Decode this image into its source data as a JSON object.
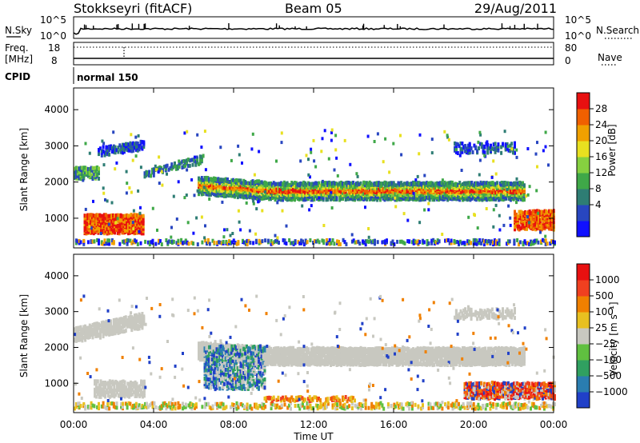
{
  "header": {
    "station": "Stokkseyri (fitACF)",
    "beam": "Beam 05",
    "date": "29/Aug/2011"
  },
  "chart_data": [
    {
      "type": "line",
      "name": "noise-panel",
      "left_label": "N.Sky",
      "right_label": "N.Search",
      "left_ticks": [
        "10^5",
        "10^0"
      ],
      "right_ticks": [
        "10^5",
        "10^0"
      ]
    },
    {
      "type": "line",
      "name": "freq-panel",
      "left_label_top": "Freq.",
      "left_label_bottom": "[MHz]",
      "right_label": "Nave",
      "left_ticks": [
        "18",
        "8"
      ],
      "right_ticks": [
        "80",
        "0"
      ]
    },
    {
      "type": "table",
      "name": "cpid-panel",
      "label": "CPID",
      "segments": [
        {
          "start_hour": 0,
          "text": "normal 150"
        }
      ]
    },
    {
      "type": "heatmap",
      "name": "power",
      "ylabel": "Slant Range [km]",
      "ylim": [
        180,
        4600
      ],
      "yticks": [
        "1000",
        "2000",
        "3000",
        "4000"
      ],
      "xlim_hours": [
        0,
        24
      ],
      "colorbar": {
        "label": "Power [dB]",
        "ticks": [
          "4",
          "8",
          "12",
          "16",
          "20",
          "24",
          "28"
        ],
        "colors": [
          "#1010ff",
          "#2846c0",
          "#2e7d74",
          "#3fa848",
          "#86d040",
          "#e8e020",
          "#f0a000",
          "#f06000",
          "#e81010"
        ]
      }
    },
    {
      "type": "heatmap",
      "name": "velocity",
      "ylabel": "Slant Range [km]",
      "ylim": [
        180,
        4600
      ],
      "yticks": [
        "1000",
        "2000",
        "3000",
        "4000"
      ],
      "xlim_hours": [
        0,
        24
      ],
      "xlabel": "Time UT",
      "xticks": [
        "00:00",
        "04:00",
        "08:00",
        "12:00",
        "16:00",
        "20:00",
        "00:00"
      ],
      "colorbar": {
        "label": "Velocity [m s⁻¹]",
        "ticks": [
          "1000",
          "500",
          "100",
          "25",
          "−25",
          "−100",
          "−500",
          "−1000"
        ],
        "colors": [
          "#2040c8",
          "#2a7db0",
          "#30a060",
          "#60c040",
          "#c8c8c0",
          "#e8c020",
          "#f08000",
          "#f04020",
          "#e81010"
        ]
      }
    }
  ]
}
